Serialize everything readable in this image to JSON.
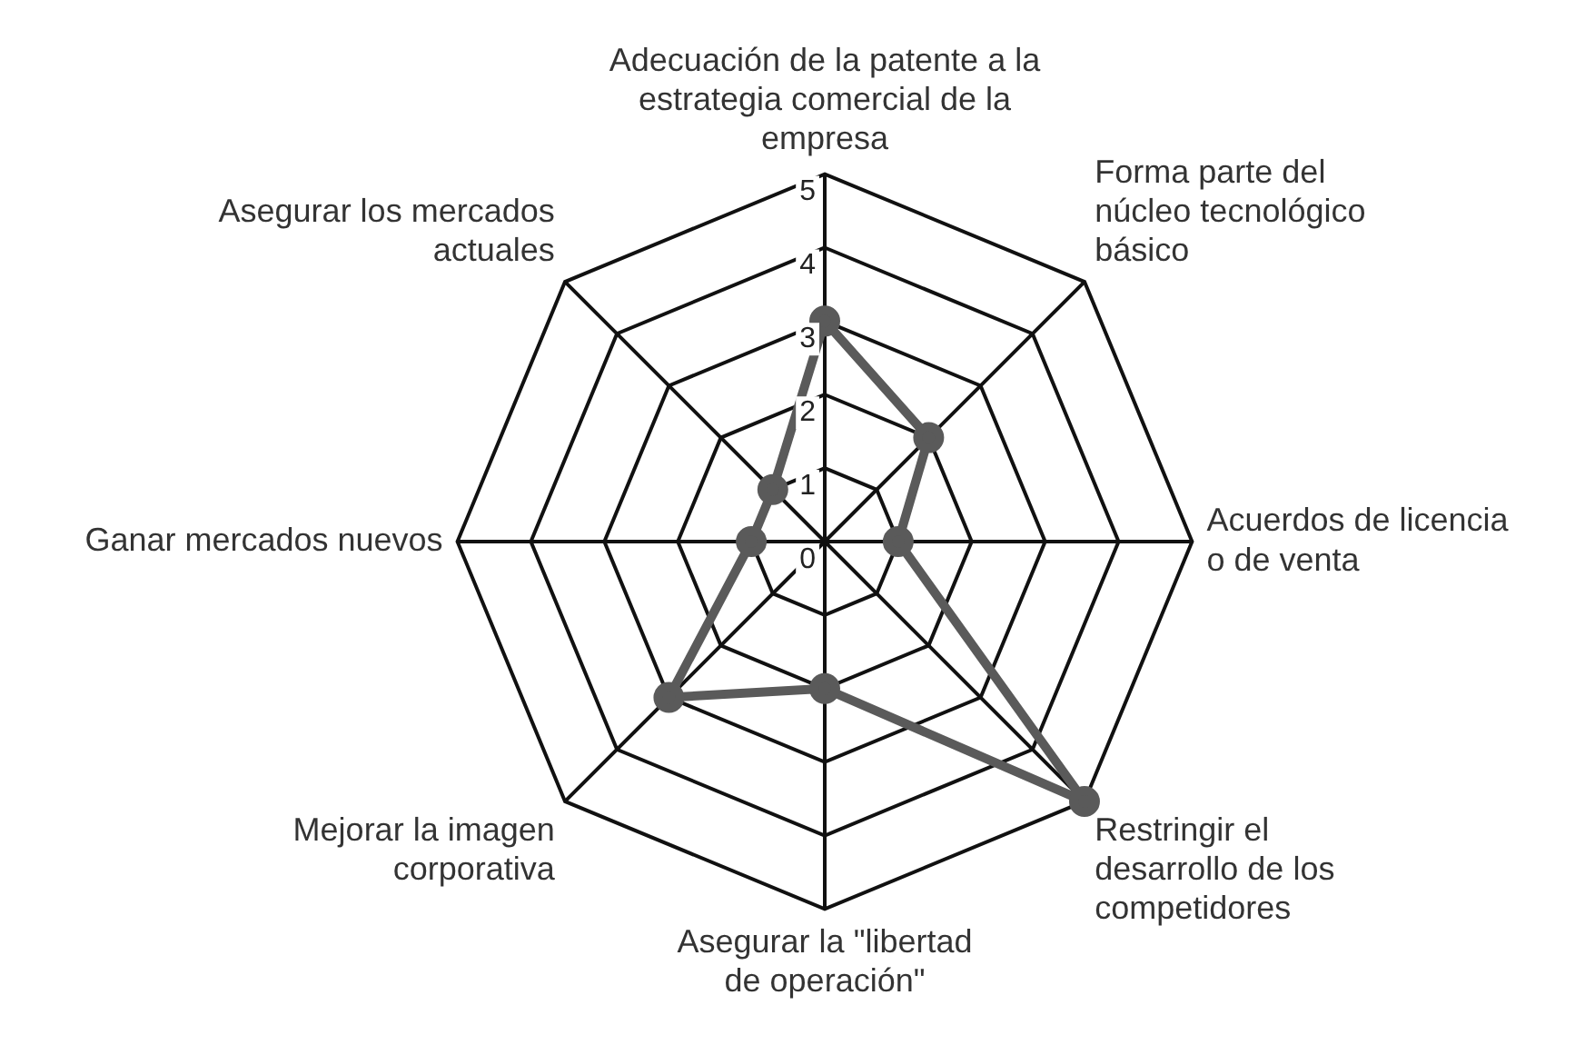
{
  "chart_data": {
    "type": "radar",
    "categories": [
      "Adecuación de la patente a la estrategia comercial de la empresa",
      "Forma parte del núcleo tecnológico básico",
      "Acuerdos de licencia o de venta",
      "Restringir el desarrollo de los competidores",
      "Asegurar la \"libertad de operación\"",
      "Mejorar la imagen corporativa",
      "Ganar mercados nuevos",
      "Asegurar los mercados actuales"
    ],
    "series": [
      {
        "color": "#5a5a5a",
        "values": [
          3,
          2,
          1,
          5,
          2,
          3,
          1,
          1
        ]
      }
    ],
    "ylim": [
      0,
      5
    ],
    "yticks": [
      0,
      1,
      2,
      3,
      4,
      5
    ],
    "marker": "circle",
    "grid": true,
    "legend": false
  }
}
